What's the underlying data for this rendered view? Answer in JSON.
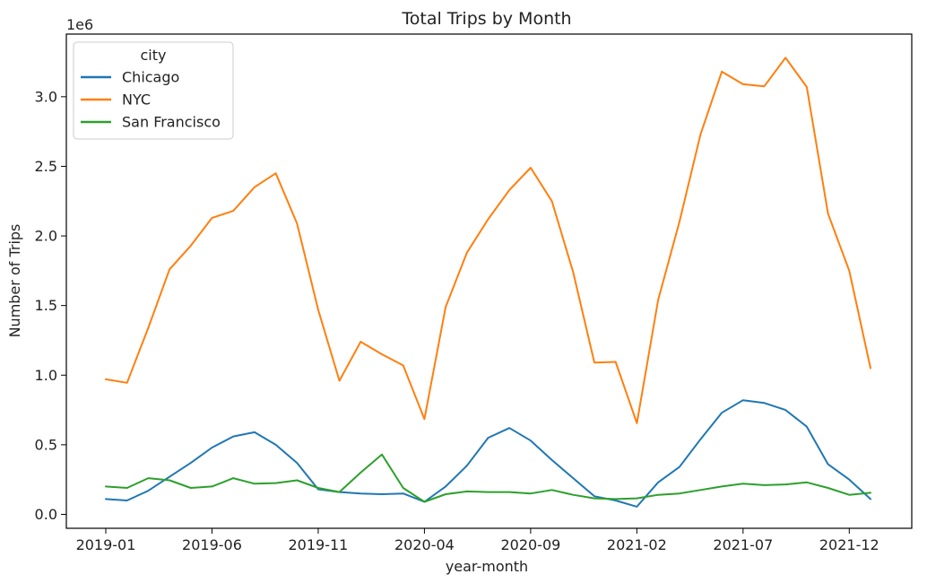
{
  "chart_data": {
    "type": "line",
    "title": "Total Trips by Month",
    "xlabel": "year-month",
    "ylabel": "Number of Trips",
    "y_offset_label": "1e6",
    "ylim": [
      -0.1,
      3.45
    ],
    "y_ticks": [
      0.0,
      0.5,
      1.0,
      1.5,
      2.0,
      2.5,
      3.0
    ],
    "y_tick_labels": [
      "0.0",
      "0.5",
      "1.0",
      "1.5",
      "2.0",
      "2.5",
      "3.0"
    ],
    "x": [
      "2019-01",
      "2019-02",
      "2019-03",
      "2019-04",
      "2019-05",
      "2019-06",
      "2019-07",
      "2019-08",
      "2019-09",
      "2019-10",
      "2019-11",
      "2019-12",
      "2020-01",
      "2020-02",
      "2020-03",
      "2020-04",
      "2020-05",
      "2020-06",
      "2020-07",
      "2020-08",
      "2020-09",
      "2020-10",
      "2020-11",
      "2020-12",
      "2021-01",
      "2021-02",
      "2021-03",
      "2021-04",
      "2021-05",
      "2021-06",
      "2021-07",
      "2021-08",
      "2021-09",
      "2021-10",
      "2021-11",
      "2021-12",
      "2022-01"
    ],
    "x_ticks": [
      "2019-01",
      "2019-06",
      "2019-11",
      "2020-04",
      "2020-09",
      "2021-02",
      "2021-07",
      "2021-12"
    ],
    "grid": false,
    "legend": {
      "title": "city",
      "position": "upper left"
    },
    "series": [
      {
        "name": "Chicago",
        "color": "#1f77b4",
        "values": [
          0.11,
          0.1,
          0.17,
          0.27,
          0.37,
          0.48,
          0.56,
          0.59,
          0.5,
          0.37,
          0.18,
          0.16,
          0.15,
          0.145,
          0.15,
          0.09,
          0.2,
          0.35,
          0.55,
          0.62,
          0.53,
          0.39,
          0.26,
          0.13,
          0.1,
          0.055,
          0.23,
          0.34,
          0.54,
          0.73,
          0.82,
          0.8,
          0.75,
          0.63,
          0.36,
          0.25,
          0.11
        ]
      },
      {
        "name": "NYC",
        "color": "#ff7f0e",
        "values": [
          0.97,
          0.945,
          1.34,
          1.76,
          1.93,
          2.13,
          2.18,
          2.35,
          2.45,
          2.09,
          1.47,
          0.96,
          1.24,
          1.15,
          1.07,
          0.685,
          1.49,
          1.88,
          2.12,
          2.33,
          2.49,
          2.25,
          1.74,
          1.09,
          1.095,
          0.655,
          1.54,
          2.1,
          2.73,
          3.18,
          3.09,
          3.075,
          3.28,
          3.07,
          2.16,
          1.75,
          1.05
        ]
      },
      {
        "name": "San Francisco",
        "color": "#2ca02c",
        "values": [
          0.2,
          0.19,
          0.26,
          0.245,
          0.19,
          0.2,
          0.26,
          0.22,
          0.225,
          0.245,
          0.19,
          0.16,
          0.3,
          0.43,
          0.19,
          0.09,
          0.145,
          0.165,
          0.16,
          0.16,
          0.15,
          0.175,
          0.14,
          0.115,
          0.11,
          0.115,
          0.14,
          0.15,
          0.175,
          0.2,
          0.22,
          0.21,
          0.215,
          0.23,
          0.19,
          0.14,
          0.155
        ]
      }
    ]
  }
}
